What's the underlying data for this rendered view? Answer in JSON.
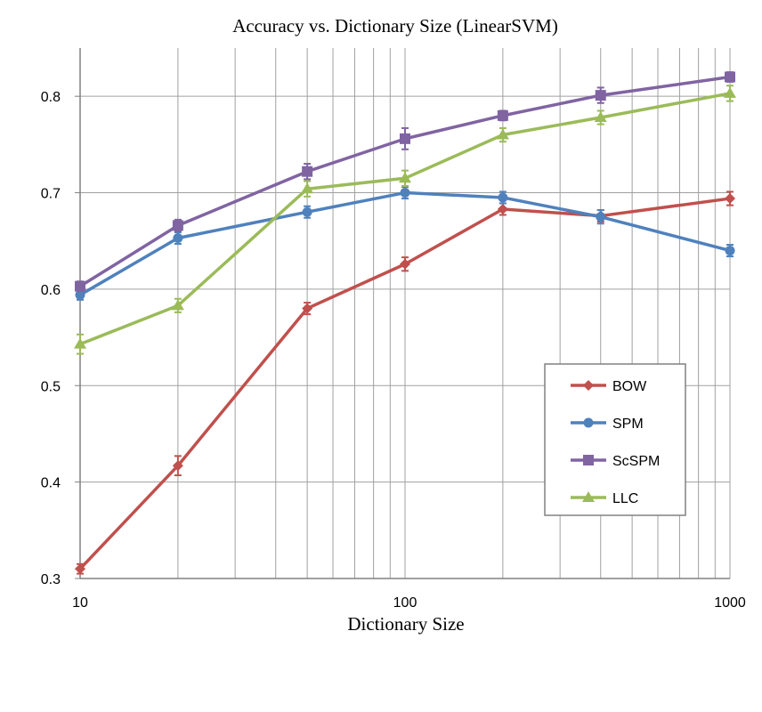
{
  "chart_data": {
    "type": "line",
    "title": "Accuracy vs. Dictionary Size (LinearSVM)",
    "xlabel": "Dictionary Size",
    "ylabel": "",
    "x_scale": "log",
    "xlim": [
      10,
      1000
    ],
    "ylim": [
      0.3,
      0.85
    ],
    "x_ticks": [
      10,
      100,
      1000
    ],
    "x_tick_labels": [
      "10",
      "100",
      "1000"
    ],
    "y_ticks": [
      0.3,
      0.4,
      0.5,
      0.6,
      0.7,
      0.8
    ],
    "y_tick_labels": [
      "0.3",
      "0.4",
      "0.5",
      "0.6",
      "0.7",
      "0.8"
    ],
    "grid": "vertical log minor and major gridlines, horizontal major gridlines",
    "legend_position": "lower-right",
    "x": [
      10,
      20,
      50,
      100,
      200,
      400,
      1000
    ],
    "series": [
      {
        "name": "BOW",
        "color": "#C0504D",
        "marker": "diamond",
        "values": [
          0.31,
          0.417,
          0.58,
          0.626,
          0.683,
          0.676,
          0.694
        ],
        "errors": [
          0.005,
          0.01,
          0.006,
          0.007,
          0.006,
          0.006,
          0.007
        ]
      },
      {
        "name": "SPM",
        "color": "#4F81BD",
        "marker": "circle",
        "values": [
          0.594,
          0.653,
          0.68,
          0.7,
          0.695,
          0.675,
          0.64
        ],
        "errors": [
          0.005,
          0.006,
          0.006,
          0.006,
          0.006,
          0.007,
          0.006
        ]
      },
      {
        "name": "ScSPM",
        "color": "#8064A2",
        "marker": "square",
        "values": [
          0.603,
          0.666,
          0.722,
          0.756,
          0.78,
          0.801,
          0.82
        ],
        "errors": [
          0.005,
          0.006,
          0.008,
          0.011,
          0.005,
          0.008,
          0.005
        ]
      },
      {
        "name": "LLC",
        "color": "#9BBB59",
        "marker": "triangle",
        "values": [
          0.543,
          0.583,
          0.704,
          0.715,
          0.76,
          0.778,
          0.803
        ],
        "errors": [
          0.01,
          0.007,
          0.008,
          0.008,
          0.007,
          0.007,
          0.008
        ]
      }
    ]
  }
}
